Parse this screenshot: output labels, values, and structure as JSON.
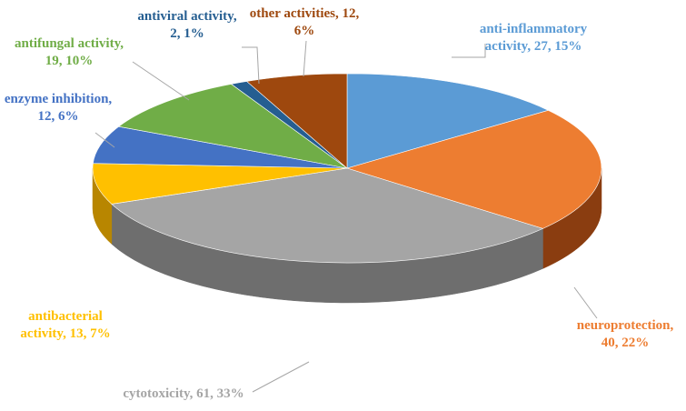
{
  "chart_data": {
    "type": "pie",
    "style": "3d-pie",
    "slices": [
      {
        "name": "anti-inflammatory activity",
        "value": 27,
        "percent": 15,
        "color": "#5B9BD5",
        "side_color": "#3f6f99",
        "label_color": "#5B9BD5",
        "label_lines": [
          "anti-inflammatory",
          "activity, 27, 15%"
        ]
      },
      {
        "name": "neuroprotection",
        "value": 40,
        "percent": 22,
        "color": "#ED7D31",
        "side_color": "#8a3d10",
        "label_color": "#ED7D31",
        "label_lines": [
          "neuroprotection,",
          "40, 22%"
        ]
      },
      {
        "name": "cytotoxicity",
        "value": 61,
        "percent": 33,
        "color": "#A5A5A5",
        "side_color": "#6e6e6e",
        "label_color": "#A5A5A5",
        "label_lines": [
          "cytotoxicity, 61, 33%"
        ]
      },
      {
        "name": "antibacterial activity",
        "value": 13,
        "percent": 7,
        "color": "#FFC000",
        "side_color": "#b88600",
        "label_color": "#FFC000",
        "label_lines": [
          "antibacterial",
          "activity, 13, 7%"
        ]
      },
      {
        "name": "enzyme inhibition",
        "value": 12,
        "percent": 6,
        "color": "#4472C4",
        "side_color": "#2c4d86",
        "label_color": "#4472C4",
        "label_lines": [
          "enzyme inhibition,",
          "12, 6%"
        ]
      },
      {
        "name": "antifungal activity",
        "value": 19,
        "percent": 10,
        "color": "#70AD47",
        "side_color": "#4a7a2e",
        "label_color": "#70AD47",
        "label_lines": [
          "antifungal activity,",
          "19, 10%"
        ]
      },
      {
        "name": "antiviral activity",
        "value": 2,
        "percent": 1,
        "color": "#255E91",
        "side_color": "#173d60",
        "label_color": "#255E91",
        "label_lines": [
          "antiviral activity,",
          "2, 1%"
        ]
      },
      {
        "name": "other activities",
        "value": 12,
        "percent": 6,
        "color": "#9E480E",
        "side_color": "#5e2a07",
        "label_color": "#9E480E",
        "label_lines": [
          "other activities, 12,",
          "6%"
        ]
      }
    ],
    "title": "",
    "legend": "none"
  }
}
